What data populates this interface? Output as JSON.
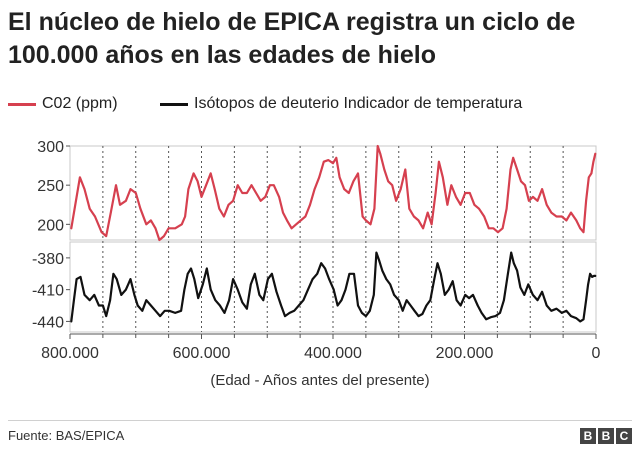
{
  "header": {
    "title": "El núcleo de hielo de EPICA registra un ciclo de 100.000 años en las edades de hielo"
  },
  "legend": [
    {
      "label": "C02 (ppm)",
      "color": "#d6404f"
    },
    {
      "label": "Isótopos de deuterio Indicador de temperatura",
      "color": "#111111"
    }
  ],
  "footer": {
    "source": "Fuente: BAS/EPICA",
    "logo_letters": [
      "B",
      "B",
      "C"
    ]
  },
  "chart_data": {
    "type": "line",
    "xlabel": "(Edad - Años antes del presente)",
    "x_range": [
      800000,
      0
    ],
    "x_ticks": [
      {
        "value": 800000,
        "label": "800.000"
      },
      {
        "value": 600000,
        "label": "600.000"
      },
      {
        "value": 400000,
        "label": "400.000"
      },
      {
        "value": 200000,
        "label": "200.000"
      },
      {
        "value": 0,
        "label": "0"
      }
    ],
    "x_minor_ticks": [
      750000,
      700000,
      650000,
      550000,
      500000,
      450000,
      350000,
      300000,
      250000,
      150000,
      100000,
      50000
    ],
    "vertical_gridlines": "dotted",
    "panels": [
      {
        "name": "C02 (ppm)",
        "color": "#d6404f",
        "ylim": [
          180,
          300
        ],
        "y_ticks": [
          {
            "value": 300,
            "label": "300"
          },
          {
            "value": 250,
            "label": "250"
          },
          {
            "value": 200,
            "label": "200"
          }
        ],
        "points": [
          [
            798000,
            195
          ],
          [
            790000,
            235
          ],
          [
            785000,
            260
          ],
          [
            778000,
            245
          ],
          [
            770000,
            220
          ],
          [
            762000,
            210
          ],
          [
            752000,
            190
          ],
          [
            745000,
            185
          ],
          [
            738000,
            215
          ],
          [
            730000,
            250
          ],
          [
            724000,
            225
          ],
          [
            715000,
            230
          ],
          [
            708000,
            245
          ],
          [
            700000,
            240
          ],
          [
            693000,
            220
          ],
          [
            684000,
            200
          ],
          [
            677000,
            205
          ],
          [
            670000,
            195
          ],
          [
            664000,
            180
          ],
          [
            657000,
            185
          ],
          [
            650000,
            195
          ],
          [
            640000,
            195
          ],
          [
            630000,
            200
          ],
          [
            625000,
            210
          ],
          [
            620000,
            245
          ],
          [
            612000,
            265
          ],
          [
            606000,
            255
          ],
          [
            600000,
            235
          ],
          [
            593000,
            250
          ],
          [
            586000,
            265
          ],
          [
            580000,
            245
          ],
          [
            573000,
            220
          ],
          [
            566000,
            210
          ],
          [
            559000,
            225
          ],
          [
            552000,
            230
          ],
          [
            545000,
            250
          ],
          [
            538000,
            240
          ],
          [
            531000,
            240
          ],
          [
            524000,
            250
          ],
          [
            517000,
            240
          ],
          [
            510000,
            230
          ],
          [
            503000,
            235
          ],
          [
            496000,
            250
          ],
          [
            490000,
            250
          ],
          [
            482000,
            235
          ],
          [
            476000,
            215
          ],
          [
            470000,
            205
          ],
          [
            463000,
            195
          ],
          [
            456000,
            200
          ],
          [
            449000,
            205
          ],
          [
            442000,
            210
          ],
          [
            435000,
            225
          ],
          [
            428000,
            245
          ],
          [
            421000,
            260
          ],
          [
            414000,
            280
          ],
          [
            407000,
            282
          ],
          [
            400000,
            278
          ],
          [
            395000,
            285
          ],
          [
            390000,
            260
          ],
          [
            383000,
            245
          ],
          [
            376000,
            240
          ],
          [
            369000,
            255
          ],
          [
            362000,
            265
          ],
          [
            355000,
            210
          ],
          [
            350000,
            205
          ],
          [
            343000,
            200
          ],
          [
            337000,
            220
          ],
          [
            332000,
            300
          ],
          [
            328000,
            290
          ],
          [
            322000,
            270
          ],
          [
            316000,
            255
          ],
          [
            310000,
            250
          ],
          [
            304000,
            230
          ],
          [
            297000,
            245
          ],
          [
            290000,
            270
          ],
          [
            284000,
            220
          ],
          [
            277000,
            210
          ],
          [
            270000,
            205
          ],
          [
            263000,
            195
          ],
          [
            256000,
            215
          ],
          [
            250000,
            200
          ],
          [
            244000,
            240
          ],
          [
            239000,
            280
          ],
          [
            233000,
            260
          ],
          [
            226000,
            225
          ],
          [
            220000,
            250
          ],
          [
            213000,
            235
          ],
          [
            206000,
            225
          ],
          [
            199000,
            240
          ],
          [
            192000,
            240
          ],
          [
            185000,
            225
          ],
          [
            178000,
            220
          ],
          [
            170000,
            210
          ],
          [
            163000,
            195
          ],
          [
            156000,
            195
          ],
          [
            149000,
            190
          ],
          [
            142000,
            195
          ],
          [
            136000,
            220
          ],
          [
            130000,
            270
          ],
          [
            126000,
            285
          ],
          [
            120000,
            270
          ],
          [
            114000,
            255
          ],
          [
            108000,
            250
          ],
          [
            102000,
            230
          ],
          [
            96000,
            235
          ],
          [
            89000,
            230
          ],
          [
            82000,
            245
          ],
          [
            75000,
            225
          ],
          [
            68000,
            215
          ],
          [
            60000,
            210
          ],
          [
            52000,
            210
          ],
          [
            45000,
            205
          ],
          [
            38000,
            215
          ],
          [
            30000,
            205
          ],
          [
            24000,
            195
          ],
          [
            19000,
            190
          ],
          [
            15000,
            230
          ],
          [
            11000,
            260
          ],
          [
            7000,
            265
          ],
          [
            4000,
            280
          ],
          [
            1000,
            290
          ]
        ]
      },
      {
        "name": "Isótopos de deuterio Indicador de temperatura",
        "color": "#111111",
        "ylim": [
          -450,
          -365
        ],
        "y_ticks": [
          {
            "value": -380,
            "label": "-380"
          },
          {
            "value": -410,
            "label": "-410"
          },
          {
            "value": -440,
            "label": "-440"
          }
        ],
        "points": [
          [
            798000,
            -440
          ],
          [
            794000,
            -420
          ],
          [
            790000,
            -400
          ],
          [
            784000,
            -398
          ],
          [
            778000,
            -415
          ],
          [
            770000,
            -420
          ],
          [
            763000,
            -415
          ],
          [
            756000,
            -425
          ],
          [
            750000,
            -425
          ],
          [
            745000,
            -435
          ],
          [
            739000,
            -420
          ],
          [
            734000,
            -395
          ],
          [
            729000,
            -400
          ],
          [
            722000,
            -415
          ],
          [
            715000,
            -410
          ],
          [
            708000,
            -400
          ],
          [
            702000,
            -415
          ],
          [
            697000,
            -425
          ],
          [
            690000,
            -430
          ],
          [
            684000,
            -420
          ],
          [
            677000,
            -425
          ],
          [
            670000,
            -430
          ],
          [
            663000,
            -435
          ],
          [
            656000,
            -430
          ],
          [
            649000,
            -430
          ],
          [
            640000,
            -432
          ],
          [
            631000,
            -430
          ],
          [
            626000,
            -410
          ],
          [
            621000,
            -395
          ],
          [
            616000,
            -390
          ],
          [
            611000,
            -400
          ],
          [
            605000,
            -418
          ],
          [
            598000,
            -405
          ],
          [
            592000,
            -390
          ],
          [
            586000,
            -410
          ],
          [
            579000,
            -420
          ],
          [
            572000,
            -425
          ],
          [
            565000,
            -432
          ],
          [
            558000,
            -420
          ],
          [
            552000,
            -400
          ],
          [
            545000,
            -410
          ],
          [
            538000,
            -422
          ],
          [
            531000,
            -428
          ],
          [
            525000,
            -405
          ],
          [
            519000,
            -395
          ],
          [
            512000,
            -415
          ],
          [
            506000,
            -420
          ],
          [
            499000,
            -400
          ],
          [
            493000,
            -395
          ],
          [
            486000,
            -412
          ],
          [
            479000,
            -425
          ],
          [
            473000,
            -435
          ],
          [
            466000,
            -432
          ],
          [
            459000,
            -430
          ],
          [
            452000,
            -425
          ],
          [
            445000,
            -420
          ],
          [
            438000,
            -410
          ],
          [
            431000,
            -400
          ],
          [
            424000,
            -395
          ],
          [
            418000,
            -385
          ],
          [
            412000,
            -390
          ],
          [
            406000,
            -400
          ],
          [
            399000,
            -410
          ],
          [
            393000,
            -425
          ],
          [
            387000,
            -420
          ],
          [
            381000,
            -410
          ],
          [
            375000,
            -395
          ],
          [
            368000,
            -395
          ],
          [
            362000,
            -425
          ],
          [
            356000,
            -432
          ],
          [
            350000,
            -435
          ],
          [
            344000,
            -430
          ],
          [
            338000,
            -415
          ],
          [
            334000,
            -375
          ],
          [
            330000,
            -382
          ],
          [
            325000,
            -392
          ],
          [
            319000,
            -400
          ],
          [
            313000,
            -405
          ],
          [
            307000,
            -415
          ],
          [
            300000,
            -420
          ],
          [
            294000,
            -430
          ],
          [
            288000,
            -420
          ],
          [
            282000,
            -425
          ],
          [
            276000,
            -430
          ],
          [
            270000,
            -435
          ],
          [
            264000,
            -433
          ],
          [
            258000,
            -425
          ],
          [
            252000,
            -420
          ],
          [
            246000,
            -400
          ],
          [
            241000,
            -385
          ],
          [
            236000,
            -395
          ],
          [
            230000,
            -415
          ],
          [
            224000,
            -410
          ],
          [
            218000,
            -402
          ],
          [
            212000,
            -420
          ],
          [
            206000,
            -425
          ],
          [
            199000,
            -415
          ],
          [
            193000,
            -418
          ],
          [
            187000,
            -415
          ],
          [
            180000,
            -425
          ],
          [
            174000,
            -432
          ],
          [
            167000,
            -438
          ],
          [
            160000,
            -436
          ],
          [
            153000,
            -435
          ],
          [
            146000,
            -432
          ],
          [
            140000,
            -420
          ],
          [
            134000,
            -395
          ],
          [
            129000,
            -375
          ],
          [
            125000,
            -385
          ],
          [
            120000,
            -392
          ],
          [
            115000,
            -408
          ],
          [
            109000,
            -415
          ],
          [
            103000,
            -405
          ],
          [
            96000,
            -415
          ],
          [
            89000,
            -420
          ],
          [
            82000,
            -412
          ],
          [
            75000,
            -425
          ],
          [
            68000,
            -430
          ],
          [
            60000,
            -428
          ],
          [
            52000,
            -432
          ],
          [
            45000,
            -430
          ],
          [
            38000,
            -435
          ],
          [
            30000,
            -437
          ],
          [
            24000,
            -440
          ],
          [
            19000,
            -438
          ],
          [
            15000,
            -420
          ],
          [
            12000,
            -405
          ],
          [
            9000,
            -395
          ],
          [
            6000,
            -398
          ],
          [
            3000,
            -397
          ],
          [
            1000,
            -397
          ]
        ]
      }
    ]
  }
}
